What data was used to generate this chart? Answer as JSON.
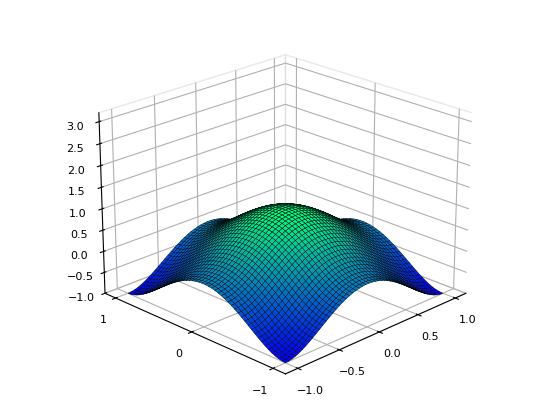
{
  "x_range": [
    -1.0,
    1.0
  ],
  "y_range": [
    -1.0,
    1.0
  ],
  "n_points": 50,
  "colormap": "winter",
  "z_ticks": [
    -1,
    -0.5,
    0,
    0.5,
    1,
    1.5,
    2,
    2.5,
    3
  ],
  "x_ticks": [
    1,
    0.5,
    0,
    -0.5,
    -1
  ],
  "y_ticks": [
    -1,
    0,
    1
  ],
  "elev": 22,
  "azim": 225,
  "linewidth": 0.3,
  "background_color": "#ffffff",
  "fig_width": 5.6,
  "fig_height": 4.2,
  "dpi": 100
}
